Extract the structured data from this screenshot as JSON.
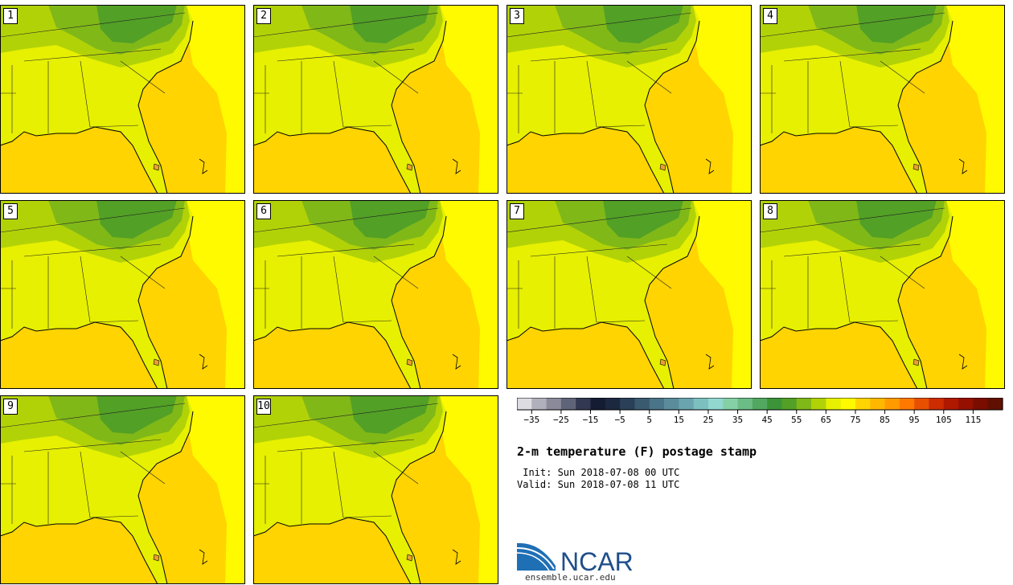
{
  "members": [
    "1",
    "2",
    "3",
    "4",
    "5",
    "6",
    "7",
    "8",
    "9",
    "10"
  ],
  "colorbar": {
    "tick_labels": [
      "−35",
      "−25",
      "−15",
      "−5",
      "5",
      "15",
      "25",
      "35",
      "45",
      "55",
      "65",
      "75",
      "85",
      "95",
      "105",
      "115"
    ],
    "colors": [
      "#dcdce2",
      "#b0b0bc",
      "#8a8a9a",
      "#606478",
      "#323852",
      "#141c34",
      "#1c2840",
      "#2a4058",
      "#3a5a70",
      "#4a7488",
      "#5a8c9c",
      "#6aa4ae",
      "#7cc0c0",
      "#92d8d0",
      "#86d0a6",
      "#6cbc86",
      "#52a860",
      "#3c9438",
      "#52a026",
      "#80b818",
      "#b2d208",
      "#e6f000",
      "#fffa00",
      "#ffd400",
      "#ffb800",
      "#ff9a00",
      "#ff7800",
      "#e85000",
      "#cc2c00",
      "#b01800",
      "#961000",
      "#7a0c00",
      "#601000"
    ]
  },
  "title": "2-m temperature (F) postage stamp",
  "init": " Init: Sun 2018-07-08 00 UTC",
  "valid": "Valid: Sun 2018-07-08 11 UTC",
  "logo": {
    "text": "NCAR",
    "url": "ensemble.ucar.edu"
  },
  "map_colors": {
    "ocean": "#ffd400",
    "warm": "#fffa00",
    "land": "#e6f000",
    "mid": "#b2d208",
    "cool": "#80b818",
    "cold": "#52a026"
  }
}
